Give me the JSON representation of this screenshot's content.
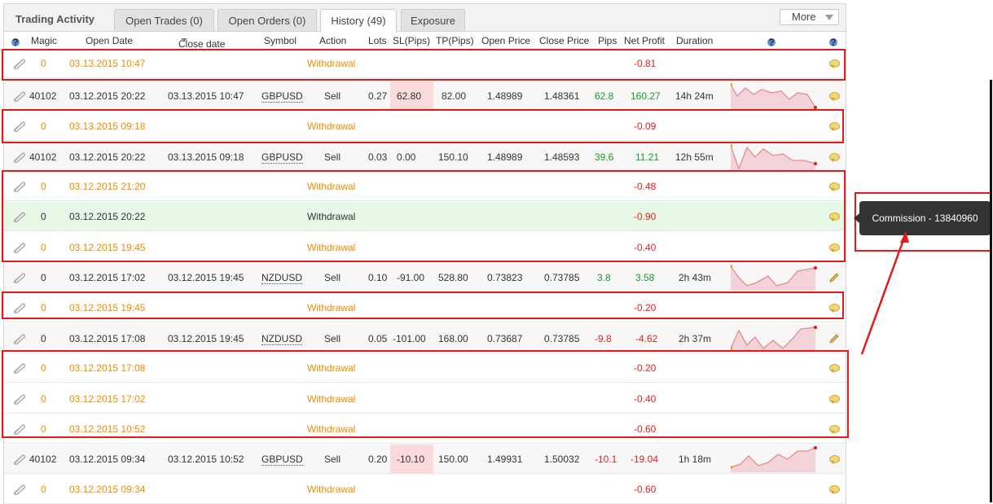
{
  "title": "Trading Activity",
  "tabs": [
    "Open Trades (0)",
    "Open Orders (0)",
    "History (49)",
    "Exposure"
  ],
  "more_label": "More",
  "columns": {
    "help": "?",
    "magic": "Magic",
    "open_date": "Open Date",
    "close_date": "Close date",
    "symbol": "Symbol",
    "action": "Action",
    "lots": "Lots",
    "sl": "SL(Pips)",
    "tp": "TP(Pips)",
    "open_price": "Open Price",
    "close_price": "Close Price",
    "pips": "Pips",
    "net_profit": "Net Profit",
    "duration": "Duration"
  },
  "rows": [
    {
      "type": "withdrawal",
      "magic": "0",
      "open_date": "03.13.2015 10:47",
      "action": "Withdrawal",
      "net_profit": "-0.81"
    },
    {
      "type": "trade",
      "magic": "40102",
      "open_date": "03.12.2015 20:22",
      "close_date": "03.13.2015 10:47",
      "symbol": "GBPUSD",
      "action": "Sell",
      "lots": "0.27",
      "sl": "62.80",
      "tp": "82.00",
      "open_price": "1.48989",
      "close_price": "1.48361",
      "pips": "62.8",
      "net_profit": "160.27",
      "duration": "14h 24m"
    },
    {
      "type": "withdrawal",
      "magic": "0",
      "open_date": "03.13.2015 09:18",
      "action": "Withdrawal",
      "net_profit": "-0.09"
    },
    {
      "type": "trade",
      "magic": "40102",
      "open_date": "03.12.2015 20:22",
      "close_date": "03.13.2015 09:18",
      "symbol": "GBPUSD",
      "action": "Sell",
      "lots": "0.03",
      "sl": "0.00",
      "tp": "150.10",
      "open_price": "1.48989",
      "close_price": "1.48593",
      "pips": "39.6",
      "net_profit": "11.21",
      "duration": "12h 55m"
    },
    {
      "type": "withdrawal",
      "magic": "0",
      "open_date": "03.12.2015 21:20",
      "action": "Withdrawal",
      "net_profit": "-0.48"
    },
    {
      "type": "withdrawal",
      "magic": "0",
      "open_date": "03.12.2015 20:22",
      "action": "Withdrawal",
      "net_profit": "-0.90"
    },
    {
      "type": "withdrawal",
      "magic": "0",
      "open_date": "03.12.2015 19:45",
      "action": "Withdrawal",
      "net_profit": "-0.40"
    },
    {
      "type": "trade",
      "magic": "0",
      "open_date": "03.12.2015 17:02",
      "close_date": "03.12.2015 19:45",
      "symbol": "NZDUSD",
      "action": "Sell",
      "lots": "0.10",
      "sl": "-91.00",
      "tp": "528.80",
      "open_price": "0.73823",
      "close_price": "0.73785",
      "pips": "3.8",
      "net_profit": "3.58",
      "duration": "2h 43m"
    },
    {
      "type": "withdrawal",
      "magic": "0",
      "open_date": "03.12.2015 19:45",
      "action": "Withdrawal",
      "net_profit": "-0.20"
    },
    {
      "type": "trade",
      "magic": "0",
      "open_date": "03.12.2015 17:08",
      "close_date": "03.12.2015 19:45",
      "symbol": "NZDUSD",
      "action": "Sell",
      "lots": "0.05",
      "sl": "-101.00",
      "tp": "168.00",
      "open_price": "0.73687",
      "close_price": "0.73785",
      "pips": "-9.8",
      "net_profit": "-4.62",
      "duration": "2h 37m"
    },
    {
      "type": "withdrawal",
      "magic": "0",
      "open_date": "03.12.2015 17:08",
      "action": "Withdrawal",
      "net_profit": "-0.20"
    },
    {
      "type": "withdrawal",
      "magic": "0",
      "open_date": "03.12.2015 17:02",
      "action": "Withdrawal",
      "net_profit": "-0.40"
    },
    {
      "type": "withdrawal",
      "magic": "0",
      "open_date": "03.12.2015 10:52",
      "action": "Withdrawal",
      "net_profit": "-0.60"
    },
    {
      "type": "trade",
      "magic": "40102",
      "open_date": "03.12.2015 09:34",
      "close_date": "03.12.2015 10:52",
      "symbol": "GBPUSD",
      "action": "Sell",
      "lots": "0.20",
      "sl": "-10.10",
      "tp": "150.00",
      "open_price": "1.49931",
      "close_price": "1.50032",
      "pips": "-10.1",
      "net_profit": "-19.04",
      "duration": "1h 18m"
    },
    {
      "type": "withdrawal",
      "magic": "0",
      "open_date": "03.12.2015 09:34",
      "action": "Withdrawal",
      "net_profit": "-0.60"
    }
  ],
  "tooltip": "Commission - 13840960",
  "colors": {
    "withdrawal": "#f08c00",
    "positive": "#1a9a2a",
    "negative": "#e32020",
    "annotation": "#e41a1a"
  }
}
